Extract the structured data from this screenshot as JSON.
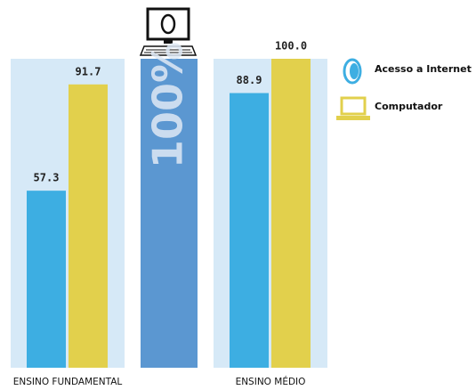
{
  "chart_data": {
    "type": "bar",
    "categories": [
      "ENSINO FUNDAMENTAL",
      "ENSINO MÉDIO"
    ],
    "series": [
      {
        "name": "Acesso a Internet",
        "color": "#3daee2",
        "values": [
          57.3,
          88.9
        ],
        "value_labels": [
          "57.3",
          "88.9"
        ]
      },
      {
        "name": "Computador",
        "color": "#e2d04c",
        "values": [
          91.7,
          100
        ],
        "value_labels": [
          "91.7",
          "100.0"
        ]
      }
    ],
    "annotation": "100%",
    "ylim": [
      0,
      100
    ],
    "legend": "right"
  }
}
